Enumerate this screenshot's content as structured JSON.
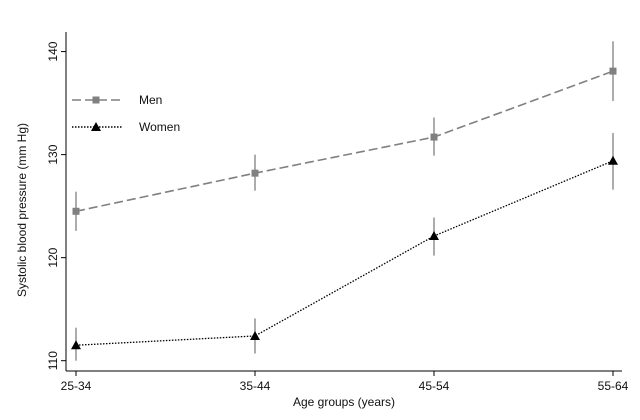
{
  "chart_data": {
    "type": "line",
    "title": "",
    "xlabel": "Age groups (years)",
    "ylabel": "Systolic blood pressure (mm Hg)",
    "categories": [
      "25-34",
      "35-44",
      "45-54",
      "55-64"
    ],
    "ylim": [
      109,
      141.9
    ],
    "yticks": [
      110,
      120,
      130,
      140
    ],
    "grid": false,
    "legend_position": "top-left",
    "series": [
      {
        "name": "Men",
        "marker": "square",
        "line": "dashed",
        "color": "#808080",
        "values": [
          124.5,
          128.2,
          131.7,
          138.1
        ],
        "ci_low": [
          122.6,
          126.5,
          129.9,
          135.2
        ],
        "ci_high": [
          126.4,
          130.0,
          133.6,
          141.0
        ]
      },
      {
        "name": "Women",
        "marker": "triangle",
        "line": "dotted",
        "color": "#000000",
        "values": [
          111.5,
          112.4,
          122.1,
          129.4
        ],
        "ci_low": [
          110.0,
          110.7,
          120.2,
          126.6
        ],
        "ci_high": [
          113.2,
          114.1,
          123.9,
          132.1
        ]
      }
    ]
  }
}
